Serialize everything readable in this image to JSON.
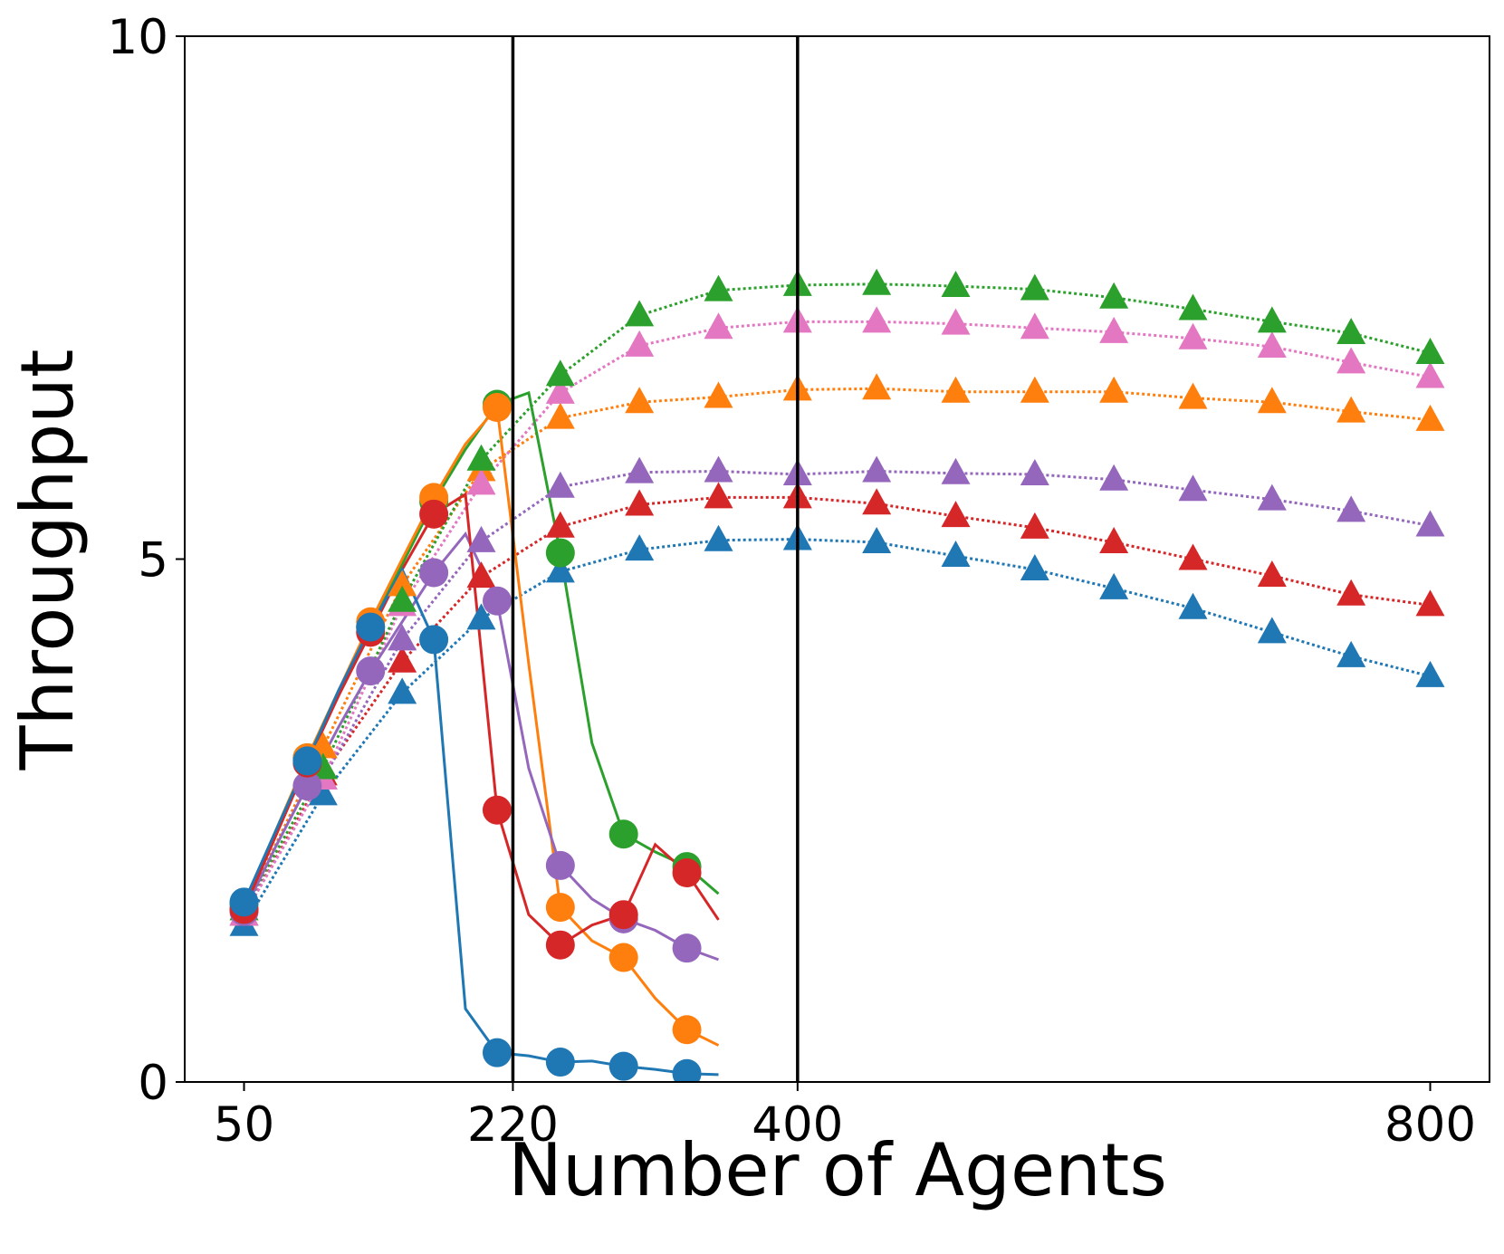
{
  "chart_data": {
    "type": "line",
    "xlabel": "Number of Agents",
    "ylabel": "Throughput",
    "xlim": [
      12.5,
      837.5
    ],
    "ylim": [
      0,
      10
    ],
    "xticks": [
      50,
      220,
      400,
      800
    ],
    "yticks": [
      0,
      5,
      10
    ],
    "vlines": [
      220,
      400
    ],
    "series": [
      {
        "color": "#1f77b4",
        "marker": "triangle",
        "linestyle": "dotted",
        "markevery": 1,
        "x": [
          50,
          100,
          150,
          200,
          250,
          300,
          350,
          400,
          450,
          500,
          550,
          600,
          650,
          700,
          750,
          800
        ],
        "values": [
          1.5,
          2.75,
          3.72,
          4.43,
          4.88,
          5.09,
          5.18,
          5.19,
          5.16,
          5.03,
          4.9,
          4.72,
          4.53,
          4.3,
          4.07,
          3.88
        ]
      },
      {
        "color": "#d62728",
        "marker": "triangle",
        "linestyle": "dotted",
        "markevery": 1,
        "x": [
          50,
          100,
          150,
          200,
          250,
          300,
          350,
          400,
          450,
          500,
          550,
          600,
          650,
          700,
          750,
          800
        ],
        "values": [
          1.6,
          2.94,
          4.02,
          4.83,
          5.31,
          5.52,
          5.59,
          5.59,
          5.53,
          5.41,
          5.3,
          5.16,
          5.0,
          4.84,
          4.66,
          4.56
        ]
      },
      {
        "color": "#9467bd",
        "marker": "triangle",
        "linestyle": "dotted",
        "markevery": 1,
        "x": [
          50,
          100,
          150,
          200,
          250,
          300,
          350,
          400,
          450,
          500,
          550,
          600,
          650,
          700,
          750,
          800
        ],
        "values": [
          1.6,
          2.9,
          4.23,
          5.17,
          5.69,
          5.83,
          5.84,
          5.81,
          5.84,
          5.82,
          5.81,
          5.76,
          5.66,
          5.57,
          5.46,
          5.32
        ]
      },
      {
        "color": "#ff7f0e",
        "marker": "triangle",
        "linestyle": "dotted",
        "markevery": 1,
        "x": [
          50,
          100,
          150,
          200,
          250,
          300,
          350,
          400,
          450,
          500,
          550,
          600,
          650,
          700,
          750,
          800
        ],
        "values": [
          1.65,
          3.2,
          4.75,
          5.85,
          6.35,
          6.5,
          6.55,
          6.62,
          6.63,
          6.6,
          6.6,
          6.6,
          6.54,
          6.5,
          6.41,
          6.33
        ]
      },
      {
        "color": "#e377c2",
        "marker": "triangle",
        "linestyle": "dotted",
        "markevery": 1,
        "x": [
          50,
          100,
          150,
          200,
          250,
          300,
          350,
          400,
          450,
          500,
          550,
          600,
          650,
          700,
          750,
          800
        ],
        "values": [
          1.6,
          2.9,
          4.56,
          5.72,
          6.59,
          7.04,
          7.21,
          7.27,
          7.27,
          7.25,
          7.21,
          7.17,
          7.11,
          7.03,
          6.88,
          6.74
        ]
      },
      {
        "color": "#2ca02c",
        "marker": "triangle",
        "linestyle": "dotted",
        "markevery": 1,
        "x": [
          50,
          100,
          150,
          200,
          250,
          300,
          350,
          400,
          450,
          500,
          550,
          600,
          650,
          700,
          750,
          800
        ],
        "values": [
          1.65,
          3.0,
          4.6,
          5.95,
          6.76,
          7.33,
          7.57,
          7.62,
          7.63,
          7.61,
          7.58,
          7.5,
          7.39,
          7.27,
          7.16,
          6.97
        ]
      },
      {
        "color": "#2ca02c",
        "marker": "circle",
        "linestyle": "solid",
        "markevery": 2,
        "x": [
          50,
          70,
          90,
          110,
          130,
          150,
          170,
          190,
          210,
          230,
          250,
          270,
          290,
          310,
          330,
          350
        ],
        "values": [
          1.7,
          2.4,
          3.1,
          3.75,
          4.35,
          4.95,
          5.55,
          6.05,
          6.48,
          6.59,
          5.06,
          3.24,
          2.37,
          2.2,
          2.06,
          1.8
        ]
      },
      {
        "color": "#ff7f0e",
        "marker": "circle",
        "linestyle": "solid",
        "markevery": 2,
        "x": [
          50,
          70,
          90,
          110,
          130,
          150,
          170,
          190,
          210,
          230,
          250,
          270,
          290,
          310,
          330,
          350
        ],
        "values": [
          1.65,
          2.4,
          3.1,
          3.75,
          4.4,
          5.0,
          5.59,
          6.1,
          6.45,
          4.0,
          1.67,
          1.35,
          1.19,
          0.8,
          0.5,
          0.35
        ]
      },
      {
        "color": "#9467bd",
        "marker": "circle",
        "linestyle": "solid",
        "markevery": 2,
        "x": [
          50,
          70,
          90,
          110,
          130,
          150,
          170,
          190,
          210,
          230,
          250,
          270,
          290,
          310,
          330,
          350
        ],
        "values": [
          1.63,
          2.25,
          2.83,
          3.4,
          3.93,
          4.4,
          4.87,
          5.24,
          4.6,
          3.0,
          2.07,
          1.75,
          1.56,
          1.45,
          1.28,
          1.17
        ]
      },
      {
        "color": "#d62728",
        "marker": "circle",
        "linestyle": "solid",
        "markevery": 2,
        "x": [
          50,
          70,
          90,
          110,
          130,
          150,
          170,
          190,
          210,
          230,
          250,
          270,
          290,
          310,
          330,
          350
        ],
        "values": [
          1.65,
          2.35,
          3.05,
          3.7,
          4.3,
          4.9,
          5.43,
          5.62,
          2.6,
          1.6,
          1.31,
          1.5,
          1.6,
          2.27,
          2.0,
          1.55
        ]
      },
      {
        "color": "#1f77b4",
        "marker": "circle",
        "linestyle": "solid",
        "markevery": 2,
        "x": [
          50,
          70,
          90,
          110,
          130,
          150,
          170,
          190,
          210,
          230,
          250,
          270,
          290,
          310,
          330,
          350
        ],
        "values": [
          1.72,
          2.4,
          3.07,
          3.75,
          4.35,
          4.9,
          4.23,
          0.7,
          0.28,
          0.25,
          0.19,
          0.2,
          0.15,
          0.12,
          0.08,
          0.07
        ]
      }
    ]
  }
}
